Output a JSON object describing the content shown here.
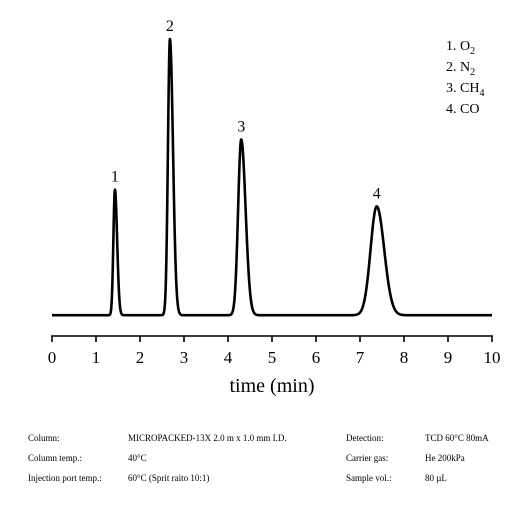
{
  "chart_data": {
    "type": "line",
    "title": "",
    "xlabel": "time (min)",
    "ylabel": "",
    "xlim": [
      0,
      10
    ],
    "ylim": [
      0,
      100
    ],
    "x_ticks": [
      "0",
      "1",
      "2",
      "3",
      "4",
      "5",
      "6",
      "7",
      "8",
      "9",
      "10"
    ],
    "grid": false,
    "line_color": "#000000",
    "baseline": 1,
    "peaks": [
      {
        "label": "1",
        "rt": 1.43,
        "height": 45,
        "width": 0.035,
        "tail": 0.05
      },
      {
        "label": "2",
        "rt": 2.68,
        "height": 99,
        "width": 0.045,
        "tail": 0.07
      },
      {
        "label": "3",
        "rt": 4.3,
        "height": 63,
        "width": 0.07,
        "tail": 0.1
      },
      {
        "label": "4",
        "rt": 7.38,
        "height": 39,
        "width": 0.14,
        "tail": 0.17
      }
    ],
    "legend": {
      "position": "top-right",
      "entries": [
        {
          "num": "1.",
          "name": "O",
          "sub": "2"
        },
        {
          "num": "2.",
          "name": "N",
          "sub": "2"
        },
        {
          "num": "3.",
          "name": "CH",
          "sub": "4"
        },
        {
          "num": "4.",
          "name": "CO",
          "sub": ""
        }
      ]
    }
  },
  "conditions": {
    "column_label": "Column:",
    "column_value": "MICROPACKED-13X 2.0 m x 1.0 mm I.D.",
    "column_temp_label": "Column temp.:",
    "column_temp_value": "40°C",
    "injection_label": "Injection port temp.:",
    "injection_value": "60°C (Sprit raito 10:1)",
    "detection_label": "Detection:",
    "detection_value": "TCD 60°C 80mA",
    "carrier_label": "Carrier gas:",
    "carrier_value": "He 200kPa",
    "sample_label": "Sample vol.:",
    "sample_value": "80 µL"
  }
}
